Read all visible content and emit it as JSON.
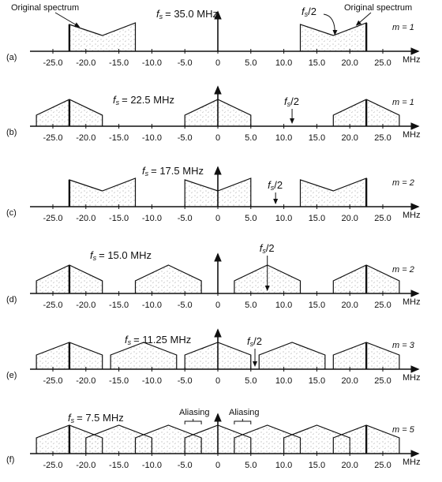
{
  "axis_ticks": [
    "-25.0",
    "-20.0",
    "-15.0",
    "-10.0",
    "-5.0",
    "0",
    "5.0",
    "10.0",
    "15.0",
    "20.0",
    "25.0"
  ],
  "unit": "MHz",
  "symbol": {
    "f": "f",
    "s": "s",
    "half": "/2"
  },
  "panels": [
    {
      "label": "(a)",
      "fs_value": "= 35.0 MHz",
      "m": "m = 1"
    },
    {
      "label": "(b)",
      "fs_value": "= 22.5 MHz",
      "m": "m = 1"
    },
    {
      "label": "(c)",
      "fs_value": "= 17.5 MHz",
      "m": "m = 2"
    },
    {
      "label": "(d)",
      "fs_value": "= 15.0 MHz",
      "m": "m = 2"
    },
    {
      "label": "(e)",
      "fs_value": "= 11.25 MHz",
      "m": "m = 3"
    },
    {
      "label": "(f)",
      "fs_value": "= 7.5 MHz",
      "m": "m = 5"
    }
  ],
  "annotations": {
    "original_left": "Original spectrum",
    "original_right": "Original spectrum",
    "aliasing_left": "Aliasing",
    "aliasing_right": "Aliasing"
  }
}
